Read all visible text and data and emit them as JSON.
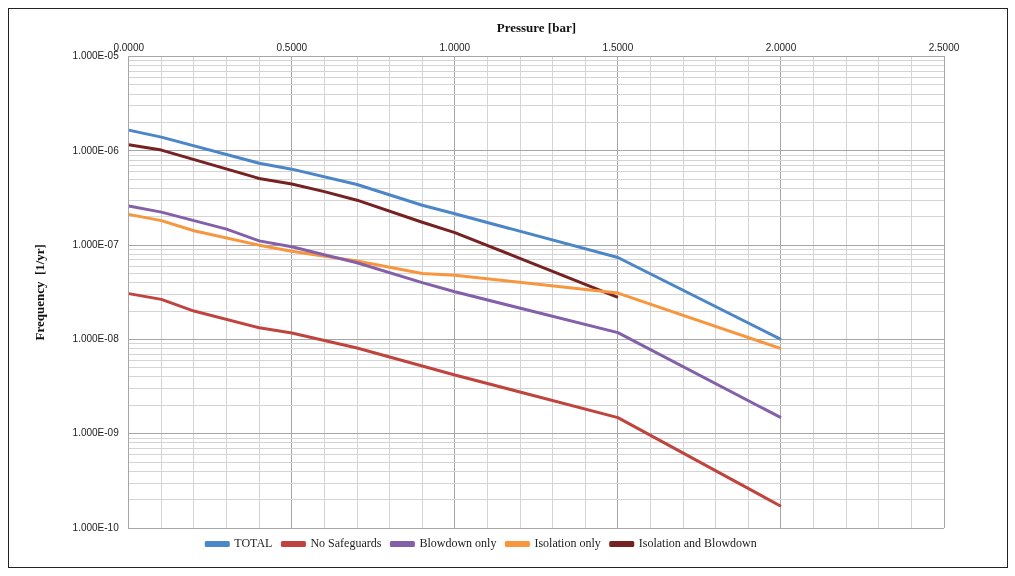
{
  "chart_data": {
    "type": "line",
    "xlabel": "Pressure [bar]",
    "ylabel": "Frequency  [1/yr]",
    "log": "y",
    "grid": true,
    "legend": "bottom",
    "line_style": "solid",
    "marker": "none",
    "xlim": [
      0,
      2.5
    ],
    "xticks": [
      {
        "value": 0,
        "label": "0.0000"
      },
      {
        "value": 0.1,
        "label": null
      },
      {
        "value": 0.2,
        "label": null
      },
      {
        "value": 0.3,
        "label": null
      },
      {
        "value": 0.4,
        "label": null
      },
      {
        "value": 0.5,
        "label": "0.5000"
      },
      {
        "value": 0.6,
        "label": null
      },
      {
        "value": 0.7,
        "label": null
      },
      {
        "value": 0.8,
        "label": null
      },
      {
        "value": 0.9,
        "label": null
      },
      {
        "value": 1,
        "label": "1.0000"
      },
      {
        "value": 1.1,
        "label": null
      },
      {
        "value": 1.2,
        "label": null
      },
      {
        "value": 1.3,
        "label": null
      },
      {
        "value": 1.4,
        "label": null
      },
      {
        "value": 1.5,
        "label": "1.5000"
      },
      {
        "value": 1.6,
        "label": null
      },
      {
        "value": 1.7,
        "label": null
      },
      {
        "value": 1.8,
        "label": null
      },
      {
        "value": 1.9,
        "label": null
      },
      {
        "value": 2,
        "label": "2.0000"
      },
      {
        "value": 2.1,
        "label": null
      },
      {
        "value": 2.2,
        "label": null
      },
      {
        "value": 2.3,
        "label": null
      },
      {
        "value": 2.4,
        "label": null
      },
      {
        "value": 2.5,
        "label": "2.5000"
      }
    ],
    "ylim": [
      1e-10,
      1e-05
    ],
    "yticks": [
      {
        "value": 1e-10,
        "label": "1.000E-10"
      },
      {
        "value": 2e-10,
        "label": null
      },
      {
        "value": 3e-10,
        "label": null
      },
      {
        "value": 4e-10,
        "label": null
      },
      {
        "value": 5e-10,
        "label": null
      },
      {
        "value": 6e-10,
        "label": null
      },
      {
        "value": 7e-10,
        "label": null
      },
      {
        "value": 8e-10,
        "label": null
      },
      {
        "value": 9e-10,
        "label": null
      },
      {
        "value": 1e-09,
        "label": "1.000E-09"
      },
      {
        "value": 2e-09,
        "label": null
      },
      {
        "value": 3e-09,
        "label": null
      },
      {
        "value": 4e-09,
        "label": null
      },
      {
        "value": 5e-09,
        "label": null
      },
      {
        "value": 6e-09,
        "label": null
      },
      {
        "value": 7e-09,
        "label": null
      },
      {
        "value": 8e-09,
        "label": null
      },
      {
        "value": 9e-09,
        "label": null
      },
      {
        "value": 1e-08,
        "label": "1.000E-08"
      },
      {
        "value": 2e-08,
        "label": null
      },
      {
        "value": 3e-08,
        "label": null
      },
      {
        "value": 4e-08,
        "label": null
      },
      {
        "value": 5e-08,
        "label": null
      },
      {
        "value": 6e-08,
        "label": null
      },
      {
        "value": 7e-08,
        "label": null
      },
      {
        "value": 8e-08,
        "label": null
      },
      {
        "value": 9e-08,
        "label": null
      },
      {
        "value": 1e-07,
        "label": "1.000E-07"
      },
      {
        "value": 2e-07,
        "label": null
      },
      {
        "value": 3e-07,
        "label": null
      },
      {
        "value": 4e-07,
        "label": null
      },
      {
        "value": 5e-07,
        "label": null
      },
      {
        "value": 6e-07,
        "label": null
      },
      {
        "value": 7e-07,
        "label": null
      },
      {
        "value": 8e-07,
        "label": null
      },
      {
        "value": 9e-07,
        "label": null
      },
      {
        "value": 1e-06,
        "label": "1.000E-06"
      },
      {
        "value": 2e-06,
        "label": null
      },
      {
        "value": 3e-06,
        "label": null
      },
      {
        "value": 4e-06,
        "label": null
      },
      {
        "value": 5e-06,
        "label": null
      },
      {
        "value": 6e-06,
        "label": null
      },
      {
        "value": 7e-06,
        "label": null
      },
      {
        "value": 8e-06,
        "label": null
      },
      {
        "value": 9e-06,
        "label": null
      },
      {
        "value": 1e-05,
        "label": "1.000E-05"
      }
    ],
    "series": [
      {
        "name": "TOTAL",
        "color": "#4a86c8",
        "x": [
          0,
          0.1,
          0.4,
          0.5,
          0.7,
          0.9,
          1.0,
          1.5,
          2.0
        ],
        "values": [
          1.66e-06,
          1.4e-06,
          7.4e-07,
          6.4e-07,
          4.4e-07,
          2.65e-07,
          2.15e-07,
          7.4e-08,
          1e-08
        ]
      },
      {
        "name": "No Safeguards",
        "color": "#c0443e",
        "x": [
          0,
          0.1,
          0.2,
          0.4,
          0.5,
          0.7,
          1.0,
          1.5,
          2.0
        ],
        "values": [
          3.06e-08,
          2.66e-08,
          2e-08,
          1.33e-08,
          1.17e-08,
          8.1e-09,
          4.2e-09,
          1.48e-09,
          1.7e-10
        ]
      },
      {
        "name": "Blowdown only",
        "color": "#8460a8",
        "x": [
          0,
          0.1,
          0.3,
          0.4,
          0.5,
          0.7,
          0.9,
          1.0,
          1.5,
          2.0
        ],
        "values": [
          2.6e-07,
          2.24e-07,
          1.48e-07,
          1.11e-07,
          9.6e-08,
          6.5e-08,
          4e-08,
          3.2e-08,
          1.18e-08,
          1.48e-09
        ]
      },
      {
        "name": "Isolation only",
        "color": "#f7963e",
        "x": [
          0,
          0.1,
          0.2,
          0.4,
          0.5,
          0.7,
          0.9,
          1.0,
          1.5,
          2.0
        ],
        "values": [
          2.12e-07,
          1.82e-07,
          1.42e-07,
          1e-07,
          8.6e-08,
          6.8e-08,
          5e-08,
          4.8e-08,
          3.1e-08,
          8e-09
        ]
      },
      {
        "name": "Isolation and Blowdown",
        "color": "#772222",
        "x": [
          0,
          0.1,
          0.4,
          0.5,
          0.6,
          0.7,
          0.9,
          1.0,
          1.5
        ],
        "values": [
          1.16e-06,
          1.02e-06,
          5.1e-07,
          4.45e-07,
          3.7e-07,
          3e-07,
          1.75e-07,
          1.36e-07,
          2.8e-08
        ]
      }
    ]
  }
}
